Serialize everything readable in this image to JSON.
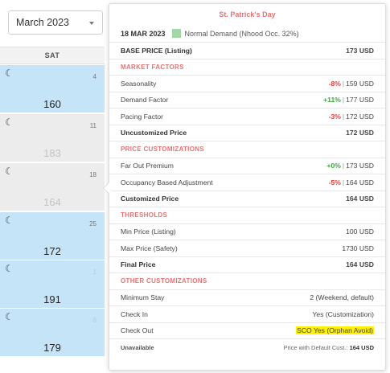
{
  "month_selector": {
    "value": "March 2023"
  },
  "calendar": {
    "column_header": "SAT",
    "cells": [
      {
        "day": "4",
        "price": "160",
        "style": "blue"
      },
      {
        "day": "11",
        "price": "183",
        "style": "grey"
      },
      {
        "day": "18",
        "price": "164",
        "style": "grey"
      },
      {
        "day": "25",
        "price": "172",
        "style": "blue"
      },
      {
        "day": "1",
        "price": "191",
        "style": "blue"
      },
      {
        "day": "8",
        "price": "179",
        "style": "blue"
      }
    ]
  },
  "popover": {
    "title": "St. Patrick's Day",
    "date": "18 MAR 2023",
    "demand": "Normal Demand (Nhood Occ. 32%)",
    "base_price": {
      "label": "BASE PRICE (Listing)",
      "value": "173 USD"
    },
    "market_factors": {
      "header": "MARKET FACTORS",
      "seasonality": {
        "label": "Seasonality",
        "pct": "-8%",
        "value": "159 USD"
      },
      "demand_factor": {
        "label": "Demand Factor",
        "pct": "+11%",
        "value": "177 USD"
      },
      "pacing_factor": {
        "label": "Pacing Factor",
        "pct": "-3%",
        "value": "172 USD"
      },
      "uncustomized": {
        "label": "Uncustomized Price",
        "value": "172 USD"
      }
    },
    "price_customizations": {
      "header": "PRICE CUSTOMIZATIONS",
      "far_out": {
        "label": "Far Out Premium",
        "pct": "+0%",
        "value": "173 USD"
      },
      "occupancy": {
        "label": "Occupancy Based Adjustment",
        "pct": "-5%",
        "value": "164 USD"
      },
      "customized": {
        "label": "Customized Price",
        "value": "164 USD"
      }
    },
    "thresholds": {
      "header": "THRESHOLDS",
      "min_price": {
        "label": "Min Price (Listing)",
        "value": "100 USD"
      },
      "max_price": {
        "label": "Max Price (Safety)",
        "value": "1730 USD"
      },
      "final_price": {
        "label": "Final Price",
        "value": "164 USD"
      }
    },
    "other_customizations": {
      "header": "OTHER CUSTOMIZATIONS",
      "min_stay": {
        "label": "Minimum Stay",
        "value": "2 (Weekend, default)"
      },
      "check_in": {
        "label": "Check In",
        "value": "Yes (Customization)"
      },
      "check_out": {
        "label": "Check Out",
        "value": "SCO Yes (Orphan Avoid)"
      }
    },
    "footer": {
      "status": "Unavailable",
      "default_label": "Price with Default Cust.:",
      "default_value": "164 USD"
    }
  }
}
